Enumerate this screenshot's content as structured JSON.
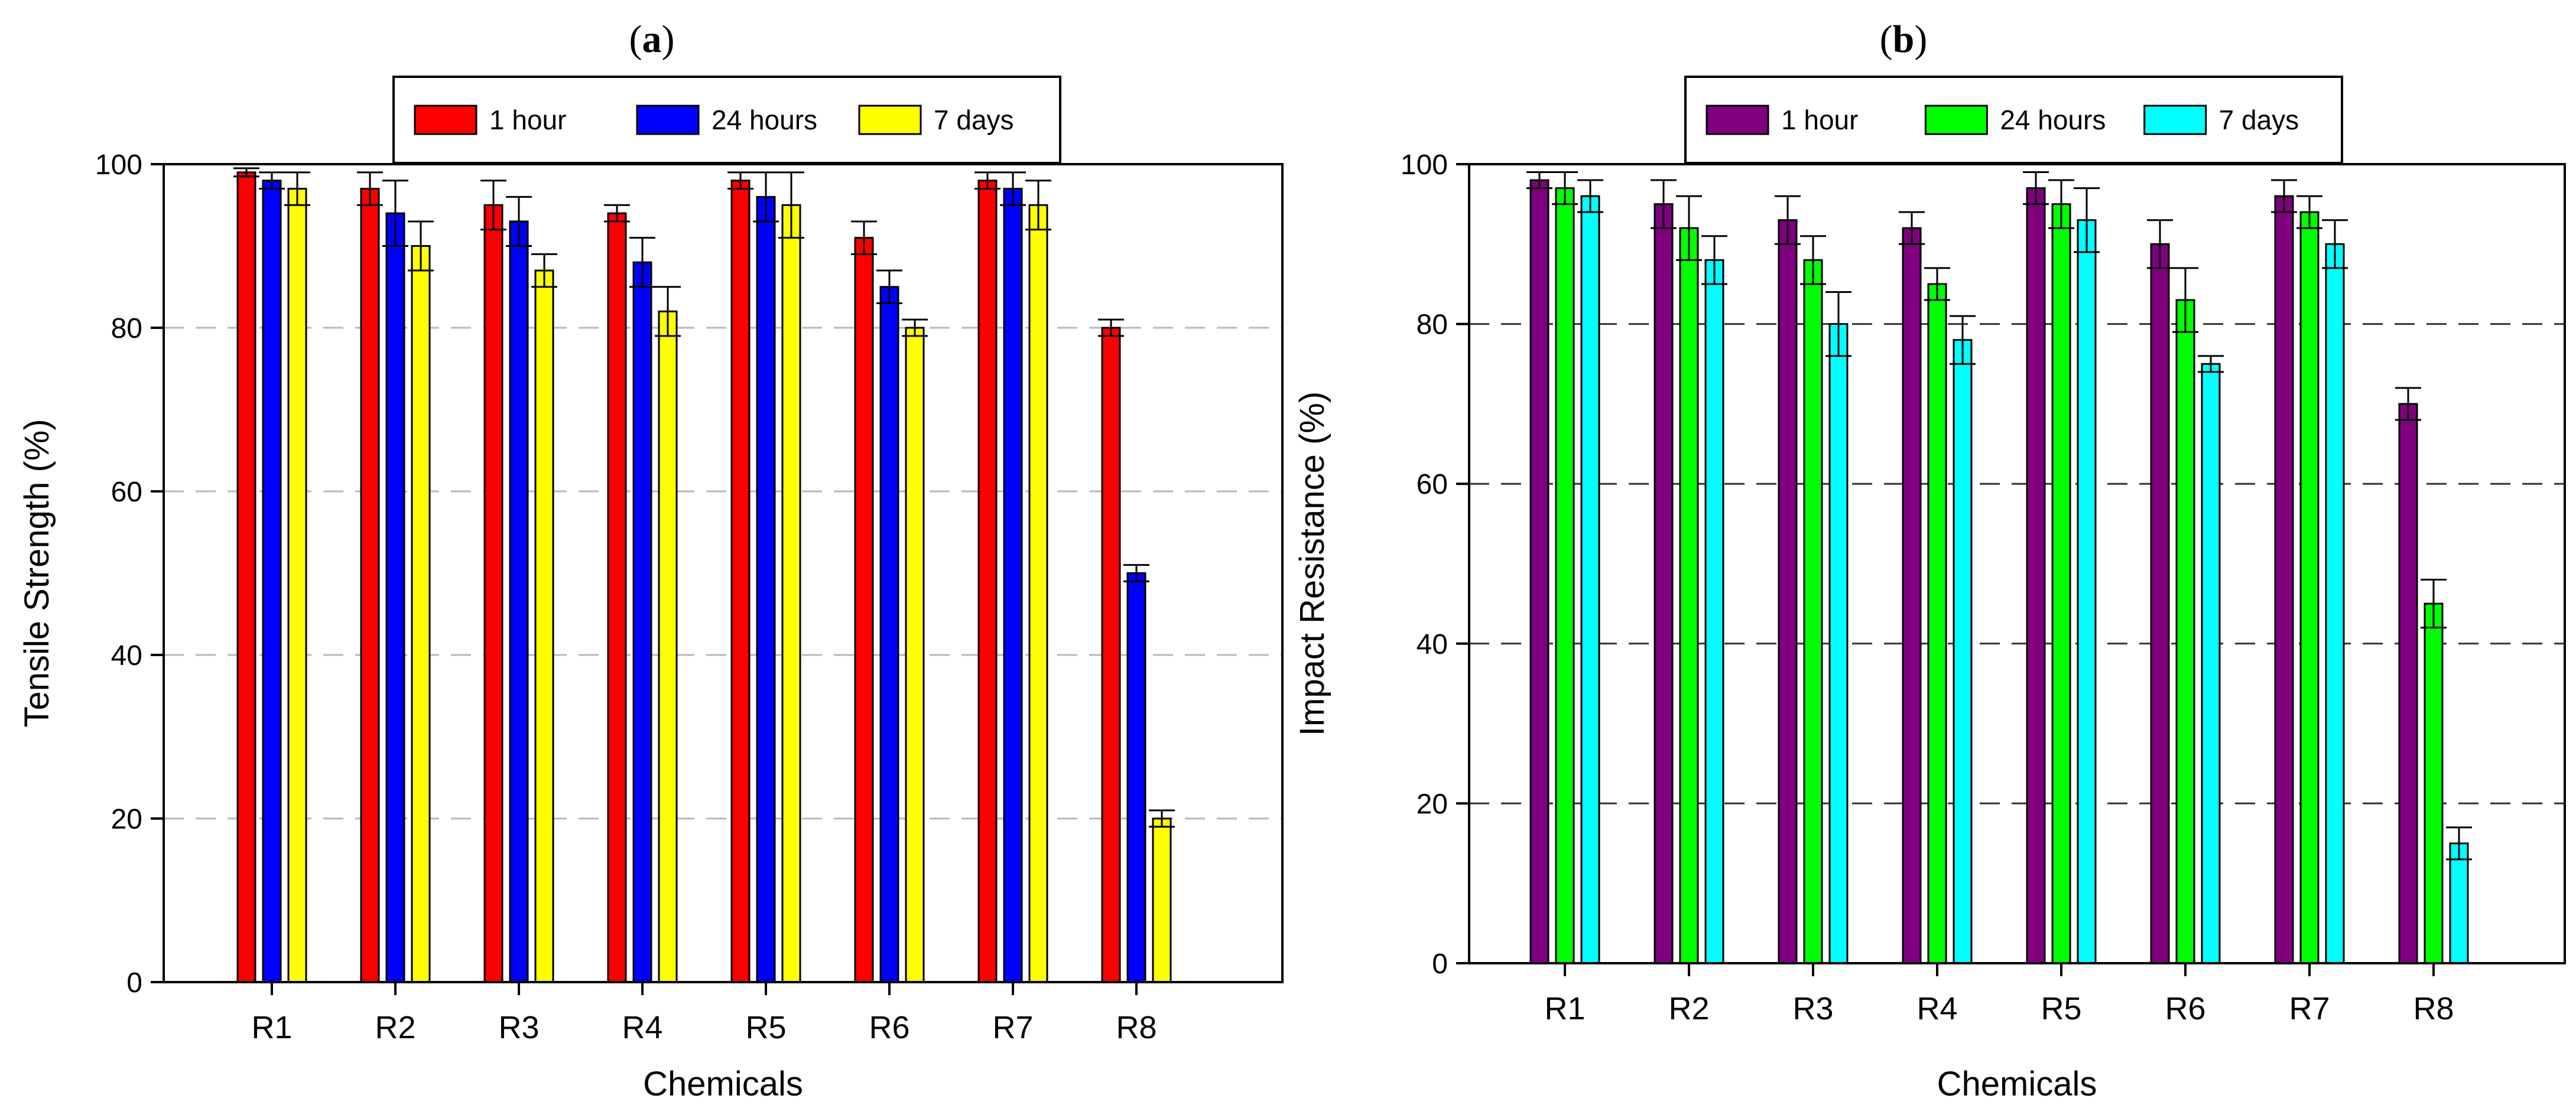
{
  "chart_data": [
    {
      "type": "bar",
      "panel_label": "a",
      "categories": [
        "R1",
        "R2",
        "R3",
        "R4",
        "R5",
        "R6",
        "R7",
        "R8"
      ],
      "series": [
        {
          "name": "1 hour",
          "color": "#ff0000",
          "values": [
            99,
            97,
            95,
            94,
            98,
            91,
            98,
            80
          ],
          "errors": [
            0.5,
            2,
            3,
            1,
            1,
            2,
            1,
            1
          ]
        },
        {
          "name": "24 hours",
          "color": "#0000ff",
          "values": [
            98,
            94,
            93,
            88,
            96,
            85,
            97,
            50
          ],
          "errors": [
            1,
            4,
            3,
            3,
            3,
            2,
            2,
            1
          ]
        },
        {
          "name": "7 days",
          "color": "#ffff00",
          "values": [
            97,
            90,
            87,
            82,
            95,
            80,
            95,
            20
          ],
          "errors": [
            2,
            3,
            2,
            3,
            4,
            1,
            3,
            1
          ]
        }
      ],
      "title": "",
      "xlabel": "Chemicals",
      "ylabel": "Tensile Strength (%)",
      "ylim": [
        0,
        100
      ],
      "yticks": [
        0,
        20,
        40,
        60,
        80,
        100
      ],
      "grid": "horizontal dashed",
      "legend": "top-center"
    },
    {
      "type": "bar",
      "panel_label": "b",
      "categories": [
        "R1",
        "R2",
        "R3",
        "R4",
        "R5",
        "R6",
        "R7",
        "R8"
      ],
      "series": [
        {
          "name": "1 hour",
          "color": "#800080",
          "values": [
            98,
            95,
            93,
            92,
            97,
            90,
            96,
            70
          ],
          "errors": [
            1,
            3,
            3,
            2,
            2,
            3,
            2,
            2
          ]
        },
        {
          "name": "24 hours",
          "color": "#00ff00",
          "values": [
            97,
            92,
            88,
            85,
            95,
            83,
            94,
            45
          ],
          "errors": [
            2,
            4,
            3,
            2,
            3,
            4,
            2,
            3
          ]
        },
        {
          "name": "7 days",
          "color": "#00ffff",
          "values": [
            96,
            88,
            80,
            78,
            93,
            75,
            90,
            15
          ],
          "errors": [
            2,
            3,
            4,
            3,
            4,
            1,
            3,
            2
          ]
        }
      ],
      "title": "",
      "xlabel": "Chemicals",
      "ylabel": "Impact Resistance (%)",
      "ylim": [
        0,
        100
      ],
      "yticks": [
        0,
        20,
        40,
        60,
        80,
        100
      ],
      "grid": "horizontal dashed",
      "legend": "top-center"
    }
  ]
}
